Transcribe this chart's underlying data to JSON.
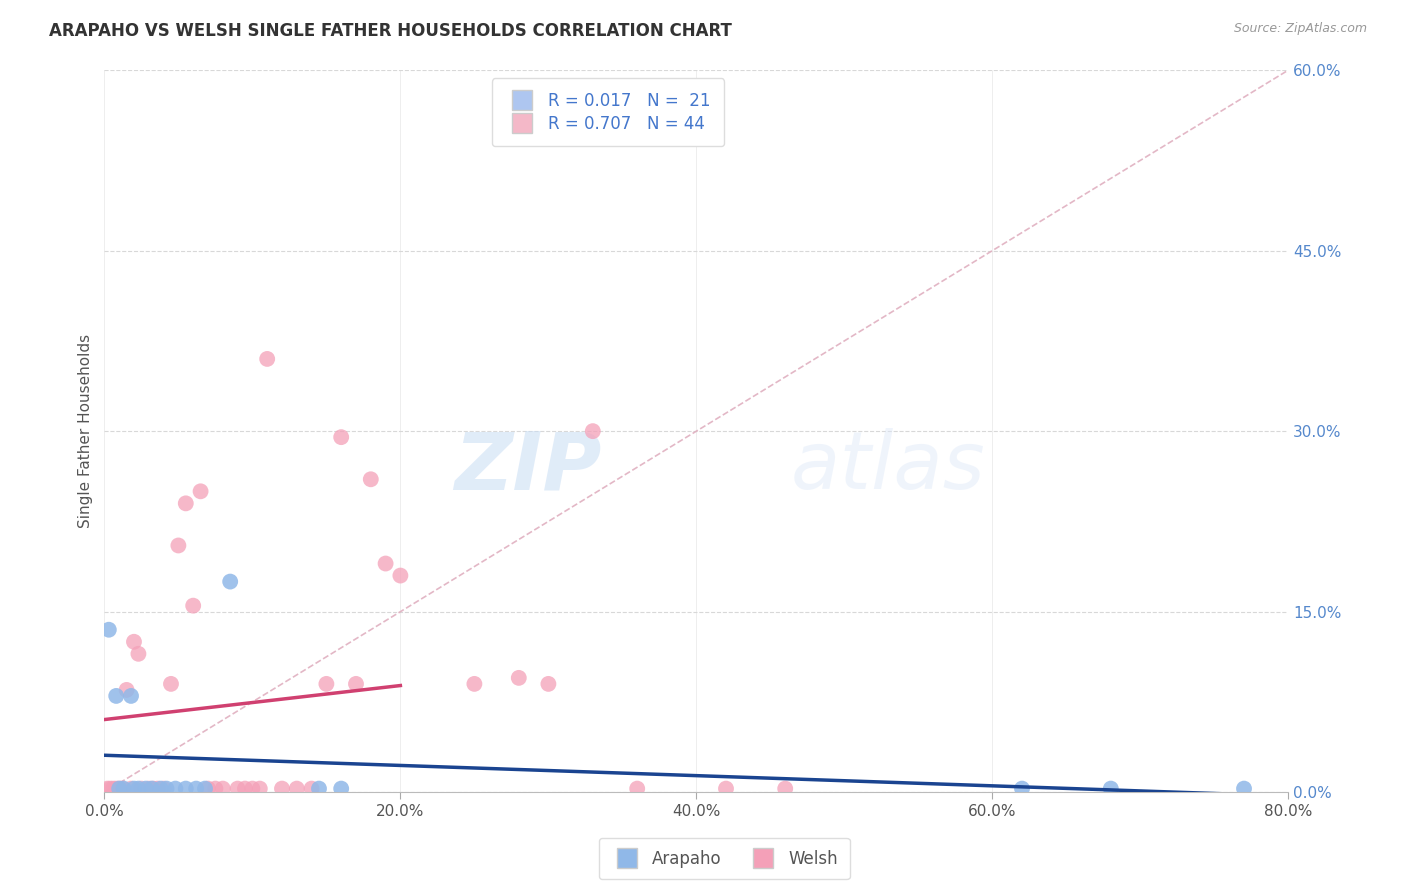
{
  "title": "ARAPAHO VS WELSH SINGLE FATHER HOUSEHOLDS CORRELATION CHART",
  "source": "Source: ZipAtlas.com",
  "ylabel": "Single Father Households",
  "x_tick_labels": [
    "0.0%",
    "20.0%",
    "40.0%",
    "60.0%",
    "80.0%"
  ],
  "x_tick_vals": [
    0,
    20,
    40,
    60,
    80
  ],
  "y_tick_labels_right": [
    "0.0%",
    "15.0%",
    "30.0%",
    "45.0%",
    "60.0%"
  ],
  "y_tick_vals": [
    0,
    15,
    30,
    45,
    60
  ],
  "watermark_zip": "ZIP",
  "watermark_atlas": "atlas",
  "legend_arapaho": "R = 0.017   N =  21",
  "legend_welsh": "R = 0.707   N = 44",
  "arapaho_color": "#90b8e8",
  "welsh_color": "#f4a0b8",
  "arapaho_line_color": "#1a4490",
  "welsh_line_color": "#d04070",
  "diagonal_color": "#e0b0c0",
  "grid_color": "#d8d8d8",
  "title_color": "#333333",
  "source_color": "#999999",
  "right_tick_color": "#5588cc",
  "legend_color": "#aec6f0",
  "legend_welsh_color": "#f4b8c8",
  "arapaho_scatter": [
    [
      0.3,
      13.5
    ],
    [
      0.8,
      8.0
    ],
    [
      1.0,
      0.3
    ],
    [
      1.3,
      0.3
    ],
    [
      1.8,
      8.0
    ],
    [
      2.0,
      0.3
    ],
    [
      2.3,
      0.3
    ],
    [
      2.8,
      0.3
    ],
    [
      3.2,
      0.3
    ],
    [
      3.8,
      0.3
    ],
    [
      4.2,
      0.3
    ],
    [
      4.8,
      0.3
    ],
    [
      5.5,
      0.3
    ],
    [
      6.2,
      0.3
    ],
    [
      6.8,
      0.3
    ],
    [
      8.5,
      17.5
    ],
    [
      14.5,
      0.3
    ],
    [
      16.0,
      0.3
    ],
    [
      62.0,
      0.3
    ],
    [
      68.0,
      0.3
    ],
    [
      77.0,
      0.3
    ]
  ],
  "welsh_scatter": [
    [
      0.2,
      0.3
    ],
    [
      0.4,
      0.3
    ],
    [
      0.6,
      0.3
    ],
    [
      0.8,
      0.3
    ],
    [
      1.0,
      0.3
    ],
    [
      1.2,
      0.3
    ],
    [
      1.5,
      8.5
    ],
    [
      1.8,
      0.3
    ],
    [
      2.0,
      12.5
    ],
    [
      2.3,
      11.5
    ],
    [
      2.5,
      0.3
    ],
    [
      3.0,
      0.3
    ],
    [
      3.3,
      0.3
    ],
    [
      3.6,
      0.3
    ],
    [
      4.0,
      0.3
    ],
    [
      4.5,
      9.0
    ],
    [
      5.0,
      20.5
    ],
    [
      5.5,
      24.0
    ],
    [
      6.0,
      15.5
    ],
    [
      6.5,
      25.0
    ],
    [
      7.0,
      0.3
    ],
    [
      7.5,
      0.3
    ],
    [
      8.0,
      0.3
    ],
    [
      9.0,
      0.3
    ],
    [
      9.5,
      0.3
    ],
    [
      10.0,
      0.3
    ],
    [
      10.5,
      0.3
    ],
    [
      11.0,
      36.0
    ],
    [
      12.0,
      0.3
    ],
    [
      13.0,
      0.3
    ],
    [
      14.0,
      0.3
    ],
    [
      15.0,
      9.0
    ],
    [
      16.0,
      29.5
    ],
    [
      17.0,
      9.0
    ],
    [
      18.0,
      26.0
    ],
    [
      19.0,
      19.0
    ],
    [
      20.0,
      18.0
    ],
    [
      25.0,
      9.0
    ],
    [
      28.0,
      9.5
    ],
    [
      30.0,
      9.0
    ],
    [
      33.0,
      30.0
    ],
    [
      36.0,
      0.3
    ],
    [
      42.0,
      0.3
    ],
    [
      46.0,
      0.3
    ]
  ],
  "xlim": [
    0,
    80
  ],
  "ylim": [
    0,
    60
  ],
  "figsize": [
    14.06,
    8.92
  ]
}
